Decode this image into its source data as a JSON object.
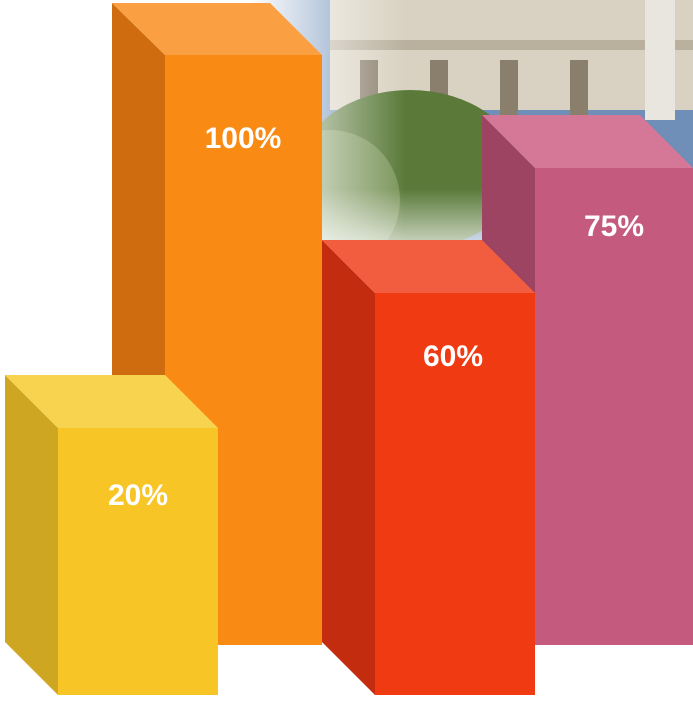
{
  "bars": [
    {
      "label": "100%"
    },
    {
      "label": "75%"
    },
    {
      "label": "60%"
    },
    {
      "label": "20%"
    }
  ]
}
